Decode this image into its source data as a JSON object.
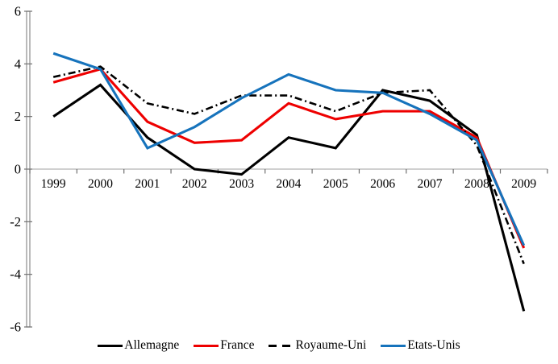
{
  "chart_data": {
    "type": "line",
    "title": "",
    "xlabel": "",
    "ylabel": "",
    "categories": [
      "1999",
      "2000",
      "2001",
      "2002",
      "2003",
      "2004",
      "2005",
      "2006",
      "2007",
      "2008",
      "2009"
    ],
    "series": [
      {
        "name": "Allemagne",
        "color": "#000000",
        "dash": "solid",
        "values": [
          2.0,
          3.2,
          1.2,
          0.0,
          -0.2,
          1.2,
          0.8,
          3.0,
          2.6,
          1.3,
          -5.4
        ]
      },
      {
        "name": "France",
        "color": "#ee0000",
        "dash": "solid",
        "values": [
          3.3,
          3.8,
          1.8,
          1.0,
          1.1,
          2.5,
          1.9,
          2.2,
          2.2,
          1.2,
          -3.0
        ]
      },
      {
        "name": "Royaume-Uni",
        "color": "#000000",
        "dash": "dashed",
        "values": [
          3.5,
          3.9,
          2.5,
          2.1,
          2.8,
          2.8,
          2.2,
          2.9,
          3.0,
          0.9,
          -3.6
        ]
      },
      {
        "name": "Etats-Unis",
        "color": "#1673bc",
        "dash": "solid",
        "values": [
          4.4,
          3.8,
          0.8,
          1.6,
          2.7,
          3.6,
          3.0,
          2.9,
          2.1,
          1.1,
          -2.9
        ]
      }
    ],
    "ylim": [
      -6,
      6
    ],
    "yticks": [
      6,
      4,
      2,
      0,
      -2,
      -4,
      -6
    ],
    "grid": false,
    "legend_position": "bottom",
    "axis_color": "#8c8c8c",
    "text_color": "#000000"
  }
}
